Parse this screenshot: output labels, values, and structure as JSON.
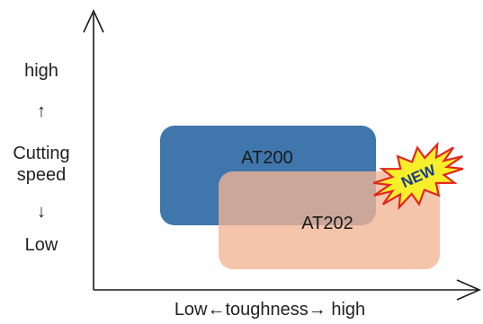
{
  "diagram": {
    "y_axis": {
      "high": "high",
      "up_arrow": "↑",
      "label_line1": "Cutting",
      "label_line2": "speed",
      "down_arrow": "↓",
      "low": "Low"
    },
    "x_axis": {
      "label": "Low←toughness→ high"
    },
    "regions": [
      {
        "label": "AT200",
        "color": "#3f76ab"
      },
      {
        "label": "AT202",
        "color": "#f2b594"
      }
    ],
    "badge": {
      "text": "NEW",
      "fill": "#f6ef2a",
      "stroke": "#e3261f"
    }
  }
}
